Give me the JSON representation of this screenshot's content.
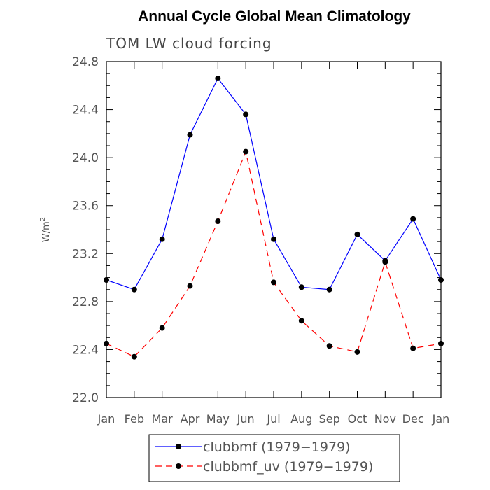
{
  "chart_data": {
    "type": "line",
    "title": "Annual Cycle Global Mean Climatology",
    "subtitle": "TOM LW cloud forcing",
    "ylabel": "W/m",
    "ylabel_sup": "2",
    "xlabel": "",
    "categories": [
      "Jan",
      "Feb",
      "Mar",
      "Apr",
      "May",
      "Jun",
      "Jul",
      "Aug",
      "Sep",
      "Oct",
      "Nov",
      "Dec",
      "Jan"
    ],
    "ylim": [
      22.0,
      24.8
    ],
    "yticks": [
      "22.0",
      "22.4",
      "22.8",
      "23.2",
      "23.6",
      "24.0",
      "24.4",
      "24.8"
    ],
    "series": [
      {
        "name": "clubbmf (1979−1979)",
        "color": "#0000ff",
        "style": "solid",
        "marker": "filled-circle",
        "values": [
          22.98,
          22.9,
          23.32,
          24.19,
          24.66,
          24.36,
          23.32,
          22.92,
          22.9,
          23.36,
          23.14,
          23.49,
          22.98
        ]
      },
      {
        "name": "clubbmf_uv (1979−1979)",
        "color": "#ff0000",
        "style": "dashed",
        "marker": "filled-circle",
        "values": [
          22.45,
          22.34,
          22.58,
          22.93,
          23.47,
          24.05,
          22.96,
          22.64,
          22.43,
          22.38,
          23.13,
          22.41,
          22.45
        ]
      }
    ],
    "grid": false,
    "legend_position": "bottom"
  }
}
